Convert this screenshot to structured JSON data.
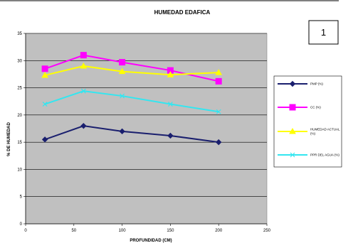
{
  "chart_data": {
    "type": "line",
    "title": "HUMEDAD EDAFICA",
    "xlabel": "PROFUNDIDAD (CM)",
    "ylabel": "% DE HUMEDAD",
    "xlim": [
      0,
      250
    ],
    "ylim": [
      0,
      35
    ],
    "xticks": [
      0,
      50,
      100,
      150,
      200,
      250
    ],
    "yticks": [
      0,
      5,
      10,
      15,
      20,
      25,
      30,
      35
    ],
    "grid": true,
    "legend_position": "right",
    "x": [
      20,
      60,
      100,
      150,
      200
    ],
    "series": [
      {
        "name": "PMP (%)",
        "values": [
          15.5,
          18.0,
          17.0,
          16.2,
          15.0
        ],
        "color": "#1a1f6e",
        "marker": "diamond"
      },
      {
        "name": "CC (%)",
        "values": [
          28.5,
          31.0,
          29.7,
          28.2,
          26.2
        ],
        "color": "#ff00ff",
        "marker": "square"
      },
      {
        "name": "HUMEDAD ACTUAL (%)",
        "values": [
          27.3,
          29.0,
          28.0,
          27.4,
          27.8
        ],
        "color": "#ffff00",
        "marker": "triangle"
      },
      {
        "name": "PPR DEL AGUA (%)",
        "values": [
          22.0,
          24.4,
          23.5,
          22.0,
          20.6
        ],
        "color": "#33e6f0",
        "marker": "x"
      }
    ]
  },
  "badge": {
    "label": "1"
  },
  "colors": {
    "plot_background": "#c0c0c0",
    "grid": "#000000"
  }
}
